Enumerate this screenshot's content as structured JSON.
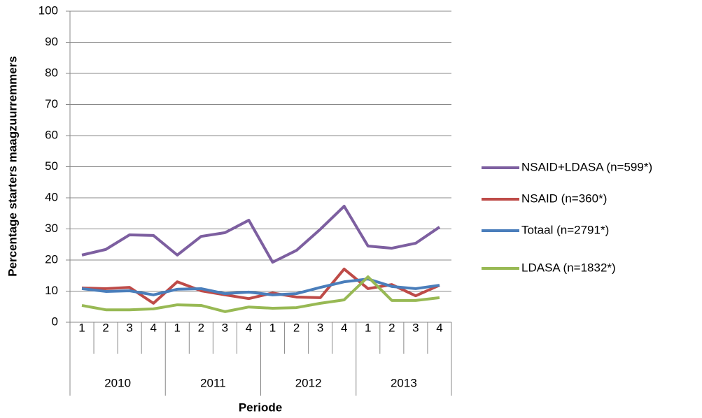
{
  "chart_data": {
    "type": "line",
    "x_label": "Periode",
    "y_label": "Percentage starters maagzuurremmers",
    "categories": [
      "1",
      "2",
      "3",
      "4",
      "1",
      "2",
      "3",
      "4",
      "1",
      "2",
      "3",
      "4",
      "1",
      "2",
      "3",
      "4"
    ],
    "year_groups": [
      "2010",
      "2011",
      "2012",
      "2013"
    ],
    "ylim": [
      0,
      100
    ],
    "yticks": [
      0,
      10,
      20,
      30,
      40,
      50,
      60,
      70,
      80,
      90,
      100
    ],
    "grid": true,
    "legend": "right",
    "series": [
      {
        "name": "NSAID+LDASA (n=599*)",
        "color": "#7d5fa0",
        "values": [
          21.6,
          23.4,
          28.1,
          27.9,
          21.6,
          27.6,
          28.8,
          32.8,
          19.3,
          23.1,
          29.9,
          37.3,
          24.5,
          23.8,
          25.4,
          30.6
        ]
      },
      {
        "name": "NSAID (n=360*)",
        "color": "#be4b48",
        "values": [
          11.0,
          10.8,
          11.2,
          6.1,
          13.0,
          10.1,
          8.8,
          7.6,
          9.4,
          8.1,
          7.9,
          17.1,
          10.8,
          12.1,
          8.5,
          11.9
        ]
      },
      {
        "name": "Totaal (n=2791*)",
        "color": "#4a7ebb",
        "values": [
          10.8,
          9.9,
          10.1,
          8.8,
          10.6,
          10.8,
          9.2,
          9.7,
          8.8,
          9.2,
          11.2,
          13.0,
          13.9,
          11.5,
          10.8,
          11.9
        ]
      },
      {
        "name": "LDASA (n=1832*)",
        "color": "#98b954",
        "values": [
          5.4,
          4.0,
          4.0,
          4.3,
          5.6,
          5.4,
          3.4,
          4.9,
          4.5,
          4.7,
          6.1,
          7.2,
          14.6,
          7.0,
          7.0,
          7.9
        ]
      }
    ]
  }
}
